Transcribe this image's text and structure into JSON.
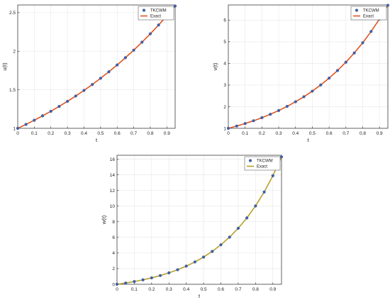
{
  "colors": {
    "marker": "#3f5fa8",
    "exact_line_top": "#e2531f",
    "exact_line_bottom": "#b8a02a",
    "grid": "#e6e6e6",
    "axis": "#000000"
  },
  "chart_data": [
    {
      "type": "line",
      "title": "",
      "xlabel": "t",
      "ylabel": "u(t)",
      "xlim": [
        0,
        0.95
      ],
      "ylim": [
        1,
        2.6
      ],
      "xticks": [
        0,
        0.1,
        0.2,
        0.3,
        0.4,
        0.5,
        0.6,
        0.7,
        0.8,
        0.9
      ],
      "yticks": [
        1,
        1.5,
        2,
        2.5
      ],
      "grid": true,
      "legend_position": "top-right",
      "x": [
        0,
        0.05,
        0.1,
        0.15,
        0.2,
        0.25,
        0.3,
        0.35,
        0.4,
        0.45,
        0.5,
        0.55,
        0.6,
        0.65,
        0.7,
        0.75,
        0.8,
        0.85,
        0.9,
        0.95
      ],
      "series": [
        {
          "name": "TKCWM",
          "style": "markers",
          "values": [
            1.0,
            1.051,
            1.105,
            1.162,
            1.221,
            1.284,
            1.35,
            1.419,
            1.492,
            1.568,
            1.649,
            1.733,
            1.822,
            1.916,
            2.014,
            2.117,
            2.226,
            2.34,
            2.46,
            2.586
          ]
        },
        {
          "name": "Exact",
          "style": "line",
          "values": [
            1.0,
            1.051,
            1.105,
            1.162,
            1.221,
            1.284,
            1.35,
            1.419,
            1.492,
            1.568,
            1.649,
            1.733,
            1.822,
            1.916,
            2.014,
            2.117,
            2.226,
            2.34,
            2.46,
            2.586
          ]
        }
      ]
    },
    {
      "type": "line",
      "title": "",
      "xlabel": "t",
      "ylabel": "v(t)",
      "xlim": [
        0,
        0.95
      ],
      "ylim": [
        1,
        6.7
      ],
      "xticks": [
        0,
        0.1,
        0.2,
        0.3,
        0.4,
        0.5,
        0.6,
        0.7,
        0.8,
        0.9
      ],
      "yticks": [
        1,
        2,
        3,
        4,
        5,
        6
      ],
      "grid": true,
      "legend_position": "top-right",
      "x": [
        0,
        0.05,
        0.1,
        0.15,
        0.2,
        0.25,
        0.3,
        0.35,
        0.4,
        0.45,
        0.5,
        0.55,
        0.6,
        0.65,
        0.7,
        0.75,
        0.8,
        0.85,
        0.9,
        0.95
      ],
      "series": [
        {
          "name": "TKCWM",
          "style": "markers",
          "values": [
            1.0,
            1.105,
            1.221,
            1.35,
            1.492,
            1.649,
            1.822,
            2.014,
            2.226,
            2.46,
            2.718,
            3.004,
            3.32,
            3.669,
            4.055,
            4.482,
            4.953,
            5.474,
            6.05,
            6.686
          ]
        },
        {
          "name": "Exact",
          "style": "line",
          "values": [
            1.0,
            1.105,
            1.221,
            1.35,
            1.492,
            1.649,
            1.822,
            2.014,
            2.226,
            2.46,
            2.718,
            3.004,
            3.32,
            3.669,
            4.055,
            4.482,
            4.953,
            5.474,
            6.05,
            6.686
          ]
        }
      ]
    },
    {
      "type": "line",
      "title": "",
      "xlabel": "t",
      "ylabel": "w(t)",
      "xlim": [
        0,
        0.95
      ],
      "ylim": [
        0,
        16.5
      ],
      "xticks": [
        0,
        0.1,
        0.2,
        0.3,
        0.4,
        0.5,
        0.6,
        0.7,
        0.8,
        0.9
      ],
      "yticks": [
        0,
        2,
        4,
        6,
        8,
        10,
        12,
        14,
        16
      ],
      "grid": true,
      "legend_position": "top-right",
      "x": [
        0,
        0.05,
        0.1,
        0.15,
        0.2,
        0.25,
        0.3,
        0.35,
        0.4,
        0.45,
        0.5,
        0.55,
        0.6,
        0.65,
        0.7,
        0.75,
        0.8,
        0.85,
        0.9,
        0.95
      ],
      "series": [
        {
          "name": "TKCWM",
          "style": "markers",
          "values": [
            0.0,
            0.162,
            0.35,
            0.568,
            0.822,
            1.117,
            1.46,
            1.858,
            2.32,
            2.857,
            3.482,
            4.207,
            5.05,
            6.029,
            7.166,
            8.488,
            10.02,
            11.8,
            13.88,
            16.29
          ]
        },
        {
          "name": "Exact",
          "style": "line",
          "values": [
            0.0,
            0.162,
            0.35,
            0.568,
            0.822,
            1.117,
            1.46,
            1.858,
            2.32,
            2.857,
            3.482,
            4.207,
            5.05,
            6.029,
            7.166,
            8.488,
            10.02,
            11.8,
            13.88,
            16.29
          ]
        }
      ]
    }
  ]
}
